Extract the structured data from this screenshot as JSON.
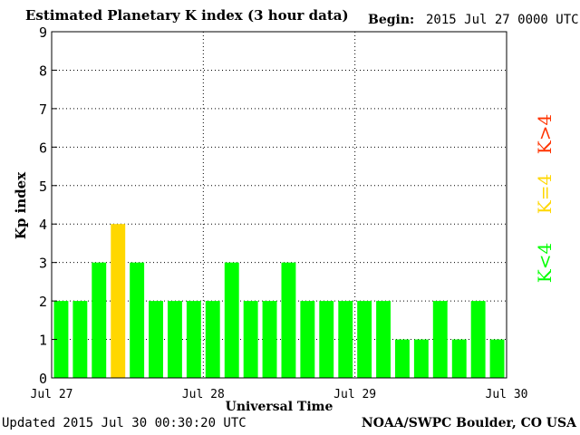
{
  "header": {
    "title": "Estimated Planetary K index (3 hour data)",
    "begin_label": "Begin:",
    "begin_value": "2015 Jul 27 0000 UTC"
  },
  "footer": {
    "updated": "Updated 2015 Jul 30 00:30:20 UTC",
    "source": "NOAA/SWPC Boulder, CO USA"
  },
  "legend": {
    "low": "K<4",
    "equal": "K=4",
    "high": "K>4"
  },
  "colors": {
    "low": "#00ff00",
    "equal": "#ffd700",
    "high": "#ff3300"
  },
  "chart_data": {
    "type": "bar",
    "title": "Estimated Planetary K index (3 hour data)",
    "ylabel": "Kp index",
    "xlabel": "Universal Time",
    "ylim": [
      0,
      9
    ],
    "yticks": [
      "0",
      "1",
      "2",
      "3",
      "4",
      "5",
      "6",
      "7",
      "8",
      "9"
    ],
    "xticks": [
      "Jul 27",
      "Jul 28",
      "Jul 29",
      "Jul 30"
    ],
    "grid": true,
    "values": [
      2,
      2,
      3,
      4,
      3,
      2,
      2,
      2,
      2,
      3,
      2,
      2,
      3,
      2,
      2,
      2,
      2,
      2,
      1,
      1,
      2,
      1,
      2,
      1
    ]
  }
}
